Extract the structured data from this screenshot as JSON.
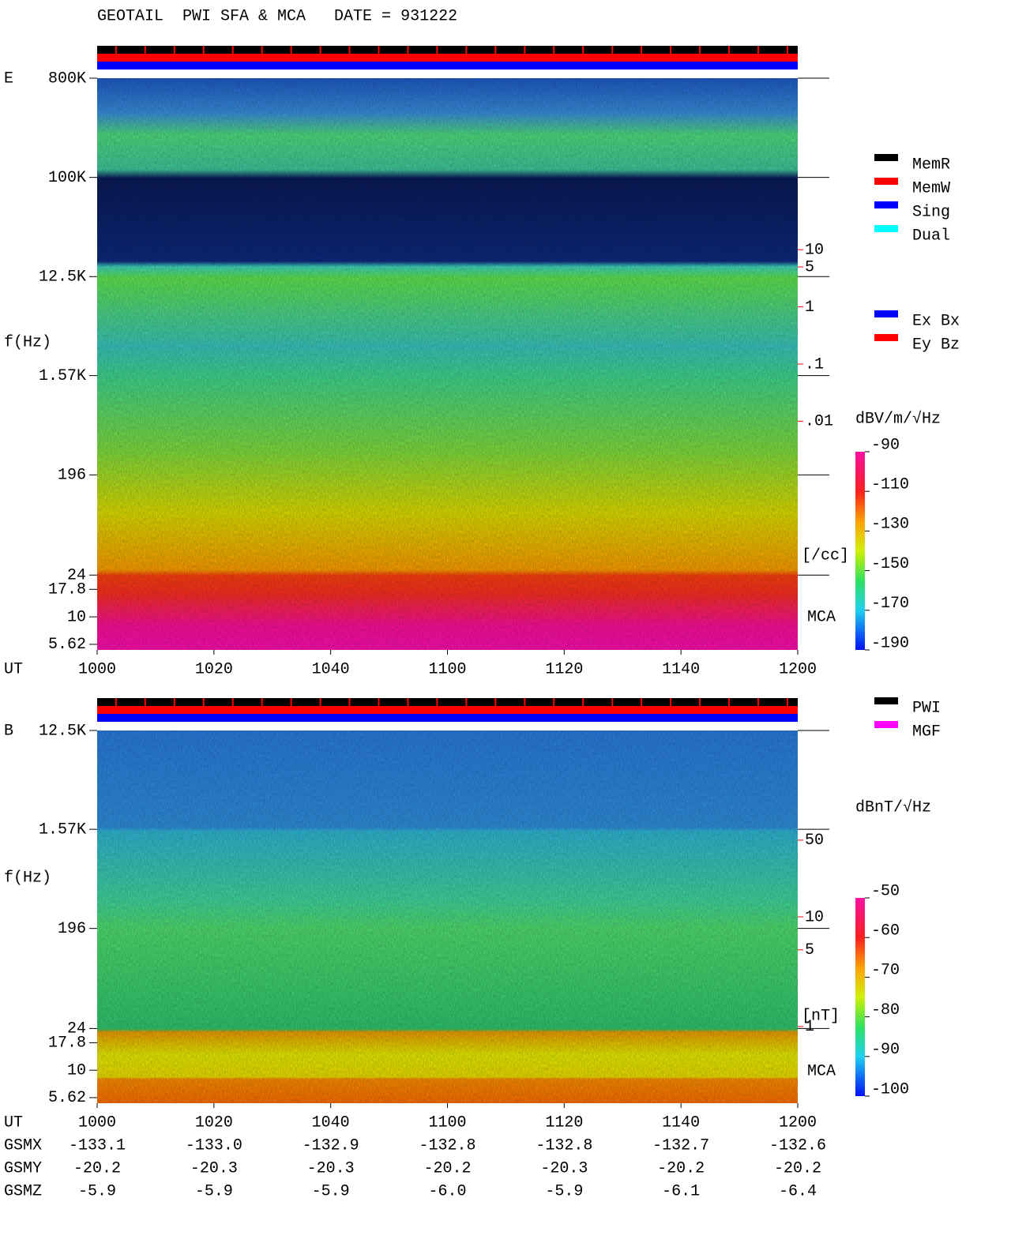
{
  "title": "GEOTAIL  PWI SFA & MCA   DATE = 931222",
  "chart_data": [
    {
      "type": "spectrogram",
      "panel_label": "E",
      "ylabel": "f(Hz)",
      "xlabel": "UT",
      "log_y": true,
      "xlim": [
        600,
        720
      ],
      "xticks": [
        {
          "value": 600,
          "label": "1000"
        },
        {
          "value": 620,
          "label": "1020"
        },
        {
          "value": 640,
          "label": "1040"
        },
        {
          "value": 660,
          "label": "1100"
        },
        {
          "value": 680,
          "label": "1120"
        },
        {
          "value": 700,
          "label": "1140"
        },
        {
          "value": 720,
          "label": "1200"
        }
      ],
      "ylim": [
        5,
        800000
      ],
      "yticks": [
        {
          "value": 800000,
          "label": "800K"
        },
        {
          "value": 100000,
          "label": "100K"
        },
        {
          "value": 12500,
          "label": "12.5K"
        },
        {
          "value": 1570,
          "label": "1.57K"
        },
        196,
        24,
        17.8,
        10,
        5.62
      ],
      "y2lim": [
        1e-06,
        10000
      ],
      "y2color": "#ff0000",
      "y2label": "[/cc]",
      "y2ticks": [
        10,
        5,
        1,
        {
          "value": 0.1,
          "label": ".1"
        },
        {
          "value": 0.01,
          "label": ".01"
        }
      ],
      "band_label": "MCA",
      "colorbar": {
        "label": "dBV/m/√Hz",
        "clim": [
          -190,
          -90
        ],
        "ticks": [
          -90,
          -110,
          -130,
          -150,
          -170,
          -190
        ]
      },
      "legends": [
        [
          {
            "name": "MemR",
            "color": "#000000"
          },
          {
            "name": "MemW",
            "color": "#ff0000"
          },
          {
            "name": "Sing",
            "color": "#0000ff"
          },
          {
            "name": "Dual",
            "color": "#00ffff"
          }
        ],
        [
          {
            "name": "Ex Bx",
            "color": "#0000ff"
          },
          {
            "name": "Ey Bz",
            "color": "#ff0000"
          }
        ]
      ]
    },
    {
      "type": "spectrogram",
      "panel_label": "B",
      "ylabel": "f(Hz)",
      "xlabel": "UT",
      "log_y": true,
      "xlim": [
        600,
        720
      ],
      "xticks": [
        {
          "value": 600,
          "label": "1000"
        },
        {
          "value": 620,
          "label": "1020"
        },
        {
          "value": 640,
          "label": "1040"
        },
        {
          "value": 660,
          "label": "1100"
        },
        {
          "value": 680,
          "label": "1120"
        },
        {
          "value": 700,
          "label": "1140"
        },
        {
          "value": 720,
          "label": "1200"
        }
      ],
      "ylim": [
        5,
        12500
      ],
      "yticks": [
        {
          "value": 12500,
          "label": "12.5K"
        },
        {
          "value": 1570,
          "label": "1.57K"
        },
        196,
        24,
        17.8,
        10,
        5.62
      ],
      "y2lim": [
        0.2,
        500
      ],
      "y2color": "#ff0000",
      "y2label": "[nT]",
      "y2ticks": [
        50,
        10,
        5,
        1
      ],
      "band_label": "MCA",
      "colorbar": {
        "label": "dBnT/√Hz",
        "clim": [
          -100,
          -50
        ],
        "ticks": [
          -50,
          -60,
          -70,
          -80,
          -90,
          -100
        ]
      },
      "legends": [
        [
          {
            "name": "PWI",
            "color": "#000000"
          },
          {
            "name": "MGF",
            "color": "#ff00ff"
          }
        ]
      ]
    }
  ],
  "ephemeris": {
    "rows": [
      {
        "name": "GSMX",
        "values": [
          "-133.1",
          "-133.0",
          "-132.9",
          "-132.8",
          "-132.8",
          "-132.7",
          "-132.6"
        ]
      },
      {
        "name": "GSMY",
        "values": [
          "-20.2",
          "-20.3",
          "-20.3",
          "-20.2",
          "-20.3",
          "-20.2",
          "-20.2"
        ]
      },
      {
        "name": "GSMZ",
        "values": [
          "-5.9",
          "-5.9",
          "-5.9",
          "-6.0",
          "-5.9",
          "-6.1",
          "-6.4"
        ]
      }
    ]
  }
}
